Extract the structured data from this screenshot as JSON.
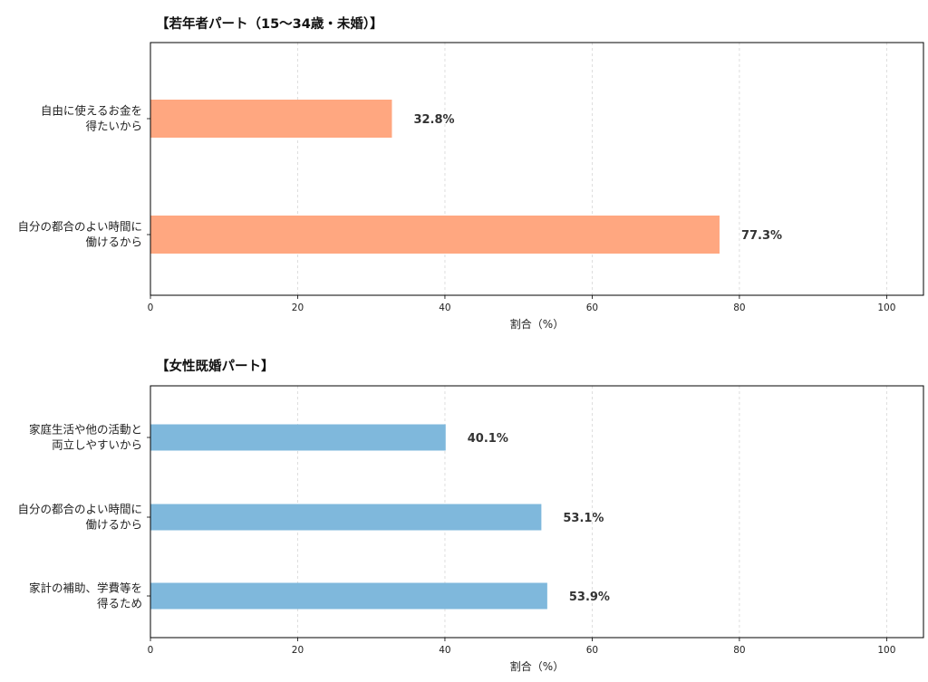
{
  "chart_data": [
    {
      "type": "bar",
      "orientation": "horizontal",
      "title": "【若年者パート（15〜34歳・未婚）】",
      "categories": [
        [
          "自由に使えるお金を",
          "得たいから"
        ],
        [
          "自分の都合のよい時間に",
          "働けるから"
        ]
      ],
      "values": [
        32.8,
        77.3
      ],
      "value_labels": [
        "32.8%",
        "77.3%"
      ],
      "color": "#ffa780",
      "xlabel": "割合（%）",
      "xlim": [
        0,
        105
      ],
      "xticks": [
        0,
        20,
        40,
        60,
        80,
        100
      ],
      "xtick_labels": [
        "0",
        "20",
        "40",
        "60",
        "80",
        "100"
      ],
      "grid": "vertical dashed"
    },
    {
      "type": "bar",
      "orientation": "horizontal",
      "title": "【女性既婚パート】",
      "categories": [
        [
          "家庭生活や他の活動と",
          "両立しやすいから"
        ],
        [
          "自分の都合のよい時間に",
          "働けるから"
        ],
        [
          "家計の補助、学費等を",
          "得るため"
        ]
      ],
      "values": [
        40.1,
        53.1,
        53.9
      ],
      "value_labels": [
        "40.1%",
        "53.1%",
        "53.9%"
      ],
      "color": "#7fb8dc",
      "xlabel": "割合（%）",
      "xlim": [
        0,
        105
      ],
      "xticks": [
        0,
        20,
        40,
        60,
        80,
        100
      ],
      "xtick_labels": [
        "0",
        "20",
        "40",
        "60",
        "80",
        "100"
      ],
      "grid": "vertical dashed"
    }
  ]
}
